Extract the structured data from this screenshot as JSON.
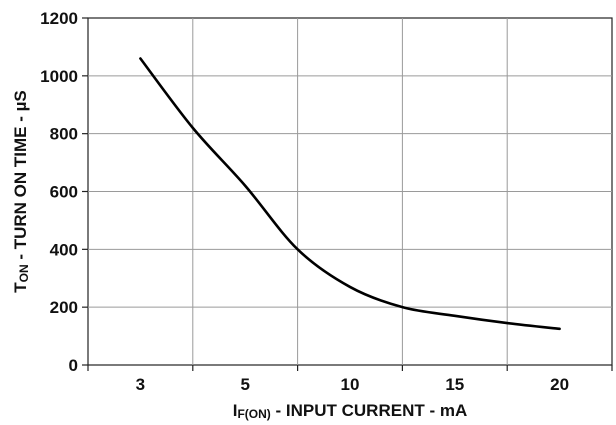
{
  "chart_data": {
    "type": "line",
    "title": "",
    "xlabel": {
      "symbol": "I",
      "subscript": "F(ON)",
      "text": " - INPUT CURRENT - mA"
    },
    "ylabel": {
      "symbol": "T",
      "subscript": "ON",
      "text": " - TURN ON TIME - µS"
    },
    "x_ticks": [
      "3",
      "5",
      "10",
      "15",
      "20"
    ],
    "y_ticks": [
      0,
      200,
      400,
      600,
      800,
      1000,
      1200
    ],
    "ylim": [
      0,
      1200
    ],
    "grid": true,
    "series": [
      {
        "x": [
          3,
          4,
          5,
          7.5,
          10,
          12.5,
          15,
          17.5,
          20
        ],
        "y": [
          1060,
          820,
          620,
          400,
          270,
          200,
          170,
          145,
          125
        ]
      }
    ]
  }
}
